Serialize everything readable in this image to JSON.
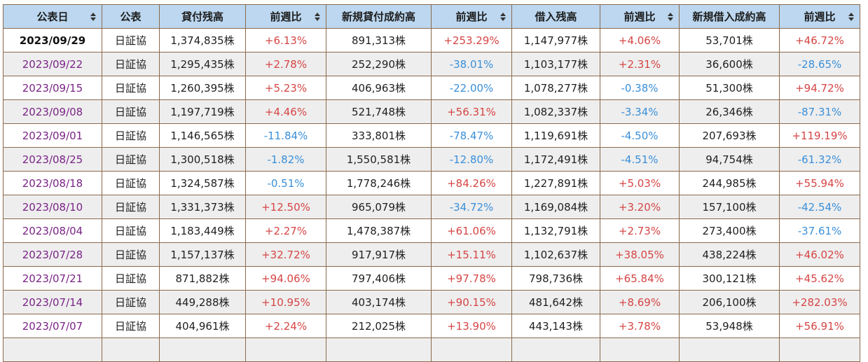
{
  "colors": {
    "header_bg": "#bcd7ef",
    "border": "#8a6a4d",
    "row_alt": "#eeeeee",
    "date_link": "#7a2486",
    "positive": "#d64545",
    "negative": "#3a8fd8"
  },
  "headers": [
    {
      "label": "公表日",
      "sortable": true
    },
    {
      "label": "公表",
      "sortable": false
    },
    {
      "label": "貸付残高",
      "sortable": false
    },
    {
      "label": "前週比",
      "sortable": true
    },
    {
      "label": "新規貸付成約高",
      "sortable": false
    },
    {
      "label": "前週比",
      "sortable": true
    },
    {
      "label": "借入残高",
      "sortable": false
    },
    {
      "label": "前週比",
      "sortable": true
    },
    {
      "label": "新規借入成約高",
      "sortable": false
    },
    {
      "label": "前週比",
      "sortable": true
    }
  ],
  "rows": [
    {
      "date": "2023/09/29",
      "source": "日証協",
      "loan_balance": "1,374,835株",
      "loan_balance_wow": "+6.13%",
      "new_loan": "891,313株",
      "new_loan_wow": "+253.29%",
      "borrow_balance": "1,147,977株",
      "borrow_balance_wow": "+4.06%",
      "new_borrow": "53,701株",
      "new_borrow_wow": "+46.72%"
    },
    {
      "date": "2023/09/22",
      "source": "日証協",
      "loan_balance": "1,295,435株",
      "loan_balance_wow": "+2.78%",
      "new_loan": "252,290株",
      "new_loan_wow": "-38.01%",
      "borrow_balance": "1,103,177株",
      "borrow_balance_wow": "+2.31%",
      "new_borrow": "36,600株",
      "new_borrow_wow": "-28.65%"
    },
    {
      "date": "2023/09/15",
      "source": "日証協",
      "loan_balance": "1,260,395株",
      "loan_balance_wow": "+5.23%",
      "new_loan": "406,963株",
      "new_loan_wow": "-22.00%",
      "borrow_balance": "1,078,277株",
      "borrow_balance_wow": "-0.38%",
      "new_borrow": "51,300株",
      "new_borrow_wow": "+94.72%"
    },
    {
      "date": "2023/09/08",
      "source": "日証協",
      "loan_balance": "1,197,719株",
      "loan_balance_wow": "+4.46%",
      "new_loan": "521,748株",
      "new_loan_wow": "+56.31%",
      "borrow_balance": "1,082,337株",
      "borrow_balance_wow": "-3.34%",
      "new_borrow": "26,346株",
      "new_borrow_wow": "-87.31%"
    },
    {
      "date": "2023/09/01",
      "source": "日証協",
      "loan_balance": "1,146,565株",
      "loan_balance_wow": "-11.84%",
      "new_loan": "333,801株",
      "new_loan_wow": "-78.47%",
      "borrow_balance": "1,119,691株",
      "borrow_balance_wow": "-4.50%",
      "new_borrow": "207,693株",
      "new_borrow_wow": "+119.19%"
    },
    {
      "date": "2023/08/25",
      "source": "日証協",
      "loan_balance": "1,300,518株",
      "loan_balance_wow": "-1.82%",
      "new_loan": "1,550,581株",
      "new_loan_wow": "-12.80%",
      "borrow_balance": "1,172,491株",
      "borrow_balance_wow": "-4.51%",
      "new_borrow": "94,754株",
      "new_borrow_wow": "-61.32%"
    },
    {
      "date": "2023/08/18",
      "source": "日証協",
      "loan_balance": "1,324,587株",
      "loan_balance_wow": "-0.51%",
      "new_loan": "1,778,246株",
      "new_loan_wow": "+84.26%",
      "borrow_balance": "1,227,891株",
      "borrow_balance_wow": "+5.03%",
      "new_borrow": "244,985株",
      "new_borrow_wow": "+55.94%"
    },
    {
      "date": "2023/08/10",
      "source": "日証協",
      "loan_balance": "1,331,373株",
      "loan_balance_wow": "+12.50%",
      "new_loan": "965,079株",
      "new_loan_wow": "-34.72%",
      "borrow_balance": "1,169,084株",
      "borrow_balance_wow": "+3.20%",
      "new_borrow": "157,100株",
      "new_borrow_wow": "-42.54%"
    },
    {
      "date": "2023/08/04",
      "source": "日証協",
      "loan_balance": "1,183,449株",
      "loan_balance_wow": "+2.27%",
      "new_loan": "1,478,387株",
      "new_loan_wow": "+61.06%",
      "borrow_balance": "1,132,791株",
      "borrow_balance_wow": "+2.73%",
      "new_borrow": "273,400株",
      "new_borrow_wow": "-37.61%"
    },
    {
      "date": "2023/07/28",
      "source": "日証協",
      "loan_balance": "1,157,137株",
      "loan_balance_wow": "+32.72%",
      "new_loan": "917,917株",
      "new_loan_wow": "+15.11%",
      "borrow_balance": "1,102,637株",
      "borrow_balance_wow": "+38.05%",
      "new_borrow": "438,224株",
      "new_borrow_wow": "+46.02%"
    },
    {
      "date": "2023/07/21",
      "source": "日証協",
      "loan_balance": "871,882株",
      "loan_balance_wow": "+94.06%",
      "new_loan": "797,406株",
      "new_loan_wow": "+97.78%",
      "borrow_balance": "798,736株",
      "borrow_balance_wow": "+65.84%",
      "new_borrow": "300,121株",
      "new_borrow_wow": "+45.62%"
    },
    {
      "date": "2023/07/14",
      "source": "日証協",
      "loan_balance": "449,288株",
      "loan_balance_wow": "+10.95%",
      "new_loan": "403,174株",
      "new_loan_wow": "+90.15%",
      "borrow_balance": "481,642株",
      "borrow_balance_wow": "+8.69%",
      "new_borrow": "206,100株",
      "new_borrow_wow": "+282.03%"
    },
    {
      "date": "2023/07/07",
      "source": "日証協",
      "loan_balance": "404,961株",
      "loan_balance_wow": "+2.24%",
      "new_loan": "212,025株",
      "new_loan_wow": "+13.90%",
      "borrow_balance": "443,143株",
      "borrow_balance_wow": "+3.78%",
      "new_borrow": "53,948株",
      "new_borrow_wow": "+56.91%"
    },
    {
      "date": "",
      "source": "",
      "loan_balance": "",
      "loan_balance_wow": "",
      "new_loan": "",
      "new_loan_wow": "",
      "borrow_balance": "",
      "borrow_balance_wow": "",
      "new_borrow": "",
      "new_borrow_wow": ""
    }
  ]
}
